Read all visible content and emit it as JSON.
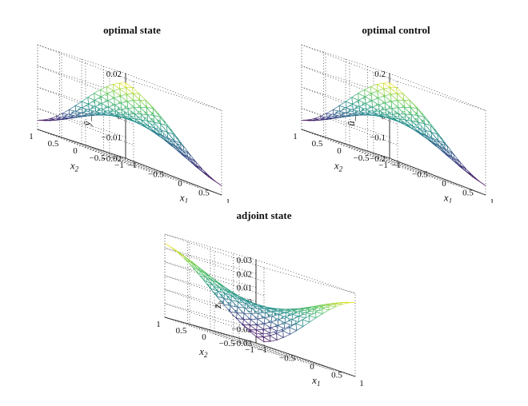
{
  "chart_data": [
    {
      "type": "surface",
      "title": "optimal state",
      "xlabel": "x_1",
      "ylabel": "x_2",
      "zlabel": "ȳ_h",
      "xlim": [
        -1,
        1
      ],
      "ylim": [
        -1,
        1
      ],
      "zlim": [
        -0.02,
        0.02
      ],
      "xticks": [
        "−1",
        "−0.5",
        "0",
        "0.5",
        "1"
      ],
      "yticks": [
        "−1",
        "−0.5",
        "0",
        "0.5",
        "1"
      ],
      "zticks": [
        "−0.02",
        "−0.01",
        "0",
        "0.01",
        "0.02"
      ],
      "mesh": "triangulated",
      "colormap": "viridis",
      "grid": true,
      "surface_description": "z ≈ 0.015 · x₁ · x₂"
    },
    {
      "type": "surface",
      "title": "optimal control",
      "xlabel": "x_1",
      "ylabel": "x_2",
      "zlabel": "ū_h",
      "xlim": [
        -1,
        1
      ],
      "ylim": [
        -1,
        1
      ],
      "zlim": [
        -0.2,
        0.2
      ],
      "xticks": [
        "−1",
        "−0.5",
        "0",
        "0.5",
        "1"
      ],
      "yticks": [
        "−1",
        "−0.5",
        "0",
        "0.5",
        "1"
      ],
      "zticks": [
        "−0.2",
        "−0.1",
        "0",
        "0.1",
        "0.2"
      ],
      "mesh": "triangulated",
      "colormap": "viridis",
      "grid": true,
      "surface_description": "z ≈ 0.18 · x₁ · x₂"
    },
    {
      "type": "surface",
      "title": "adjoint state",
      "xlabel": "x_1",
      "ylabel": "x_2",
      "zlabel": "z̄_h",
      "xlim": [
        -1,
        1
      ],
      "ylim": [
        -1,
        1
      ],
      "zlim": [
        -0.03,
        0.03
      ],
      "xticks": [
        "−1",
        "−0.5",
        "0",
        "0.5",
        "1"
      ],
      "yticks": [
        "−1",
        "−0.5",
        "0",
        "0.5",
        "1"
      ],
      "zticks": [
        "−0.03",
        "−0.02",
        "−0.01",
        "0",
        "0.01",
        "0.02",
        "0.03"
      ],
      "mesh": "triangulated",
      "colormap": "viridis",
      "grid": true,
      "surface_description": "z ≈ −0.03 · x₁ · x₂"
    }
  ]
}
